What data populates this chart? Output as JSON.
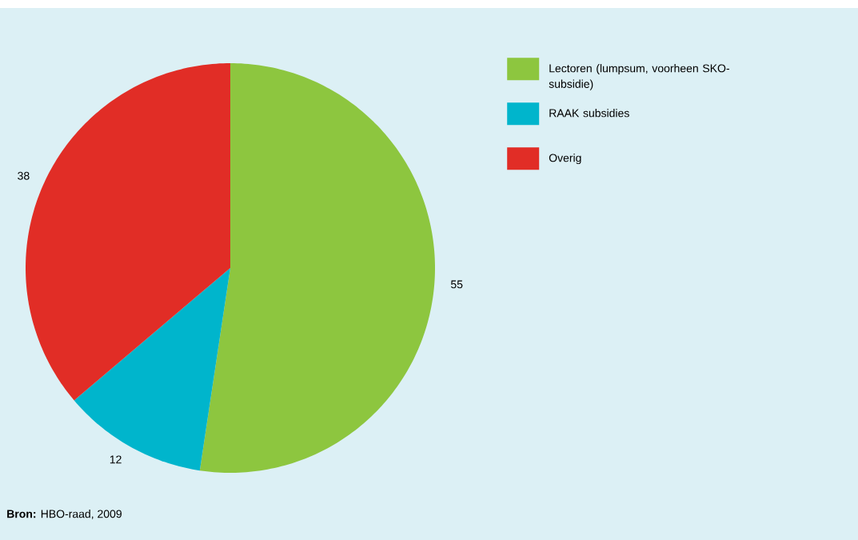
{
  "chart_data": {
    "type": "pie",
    "categories": [
      "Lectoren (lumpsum, voorheen SKO-subsidie)",
      "RAAK subsidies",
      "Overig"
    ],
    "values": [
      55,
      12,
      38
    ],
    "colors": [
      "#8dc63f",
      "#00b5cc",
      "#e12d26"
    ],
    "data_labels": true,
    "legend": "right",
    "annotations": [
      "**Bron:** HBO-raad, 2009"
    ]
  }
}
